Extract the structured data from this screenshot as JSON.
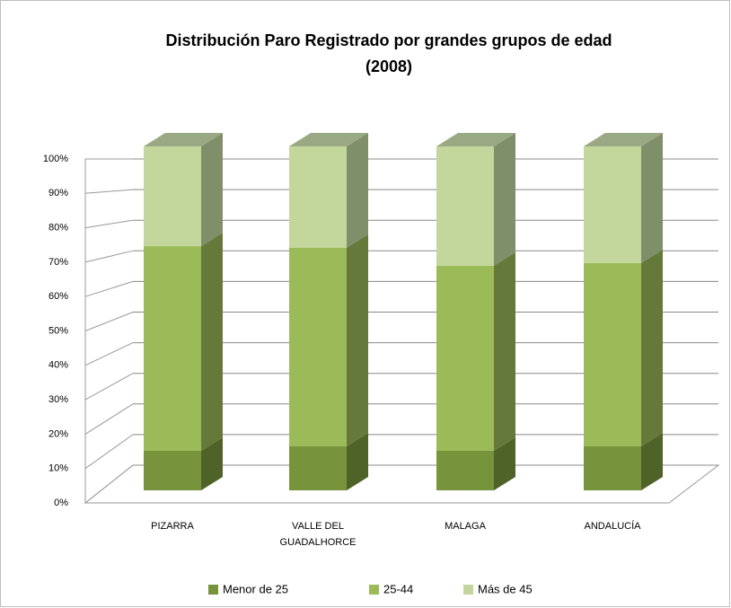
{
  "chart_data": {
    "type": "bar3d_stacked",
    "title": "Distribución Paro Registrado por grandes grupos de  edad",
    "subtitle": "(2008)",
    "categories": [
      "PIZARRA",
      "VALLE DEL GUADALHORCE",
      "MALAGA",
      "ANDALUCÍA"
    ],
    "series": [
      {
        "name": "Menor de 25",
        "color": "#77933c",
        "values": [
          11.5,
          12.8,
          11.5,
          12.8
        ]
      },
      {
        "name": "25-44",
        "color": "#9bbb59",
        "values": [
          59.5,
          57.7,
          53.8,
          53.3
        ]
      },
      {
        "name": "Más de 45",
        "color": "#c3d69b",
        "values": [
          29,
          29.5,
          34.7,
          33.9
        ]
      }
    ],
    "ylim": [
      0,
      100
    ],
    "yticks": [
      {
        "value": 0,
        "label": "0%"
      },
      {
        "value": 10,
        "label": "10%"
      },
      {
        "value": 20,
        "label": "20%"
      },
      {
        "value": 30,
        "label": "30%"
      },
      {
        "value": 40,
        "label": "40%"
      },
      {
        "value": 50,
        "label": "50%"
      },
      {
        "value": 60,
        "label": "60%"
      },
      {
        "value": 70,
        "label": "70%"
      },
      {
        "value": 80,
        "label": "80%"
      },
      {
        "value": 90,
        "label": "90%"
      },
      {
        "value": 100,
        "label": "100%"
      }
    ],
    "grid": true,
    "legend": "bottom"
  }
}
